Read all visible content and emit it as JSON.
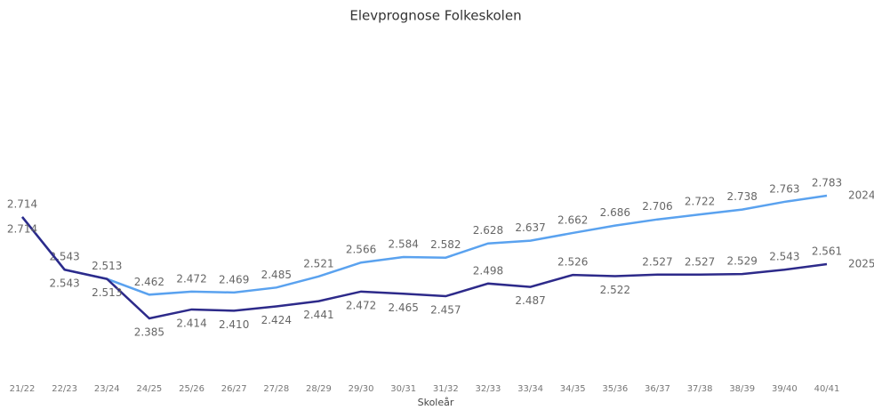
{
  "chart_data": {
    "type": "line",
    "title": "Elevprognose Folkeskolen",
    "x_label": "Skoleår",
    "categories": [
      "21/22",
      "22/23",
      "23/24",
      "24/25",
      "25/26",
      "26/27",
      "27/28",
      "28/29",
      "29/30",
      "30/31",
      "31/32",
      "32/33",
      "33/34",
      "34/35",
      "35/36",
      "36/37",
      "37/38",
      "38/39",
      "39/40",
      "40/41"
    ],
    "series": [
      {
        "name": "2024",
        "color": "#5aa2ef",
        "values": [
          2714,
          2543,
          2513,
          2462,
          2472,
          2469,
          2485,
          2521,
          2566,
          2584,
          2582,
          2628,
          2637,
          2662,
          2686,
          2706,
          2722,
          2738,
          2763,
          2783
        ],
        "value_labels": [
          "2.714",
          "2.543",
          "2.513",
          "2.462",
          "2.472",
          "2.469",
          "2.485",
          "2.521",
          "2.566",
          "2.584",
          "2.582",
          "2.628",
          "2.637",
          "2.662",
          "2.686",
          "2.706",
          "2.722",
          "2.738",
          "2.763",
          "2.783"
        ]
      },
      {
        "name": "2025",
        "color": "#2d2a8a",
        "values": [
          2714,
          2543,
          2513,
          2385,
          2414,
          2410,
          2424,
          2441,
          2472,
          2465,
          2457,
          2498,
          2487,
          2526,
          2522,
          2527,
          2527,
          2529,
          2543,
          2561
        ],
        "value_labels": [
          "2.714",
          "2.543",
          "2.513",
          "2.385",
          "2.414",
          "2.410",
          "2.424",
          "2.441",
          "2.472",
          "2.465",
          "2.457",
          "2.498",
          "2.487",
          "2.526",
          "2.522",
          "2.527",
          "2.527",
          "2.529",
          "2.543",
          "2.561"
        ]
      }
    ]
  }
}
